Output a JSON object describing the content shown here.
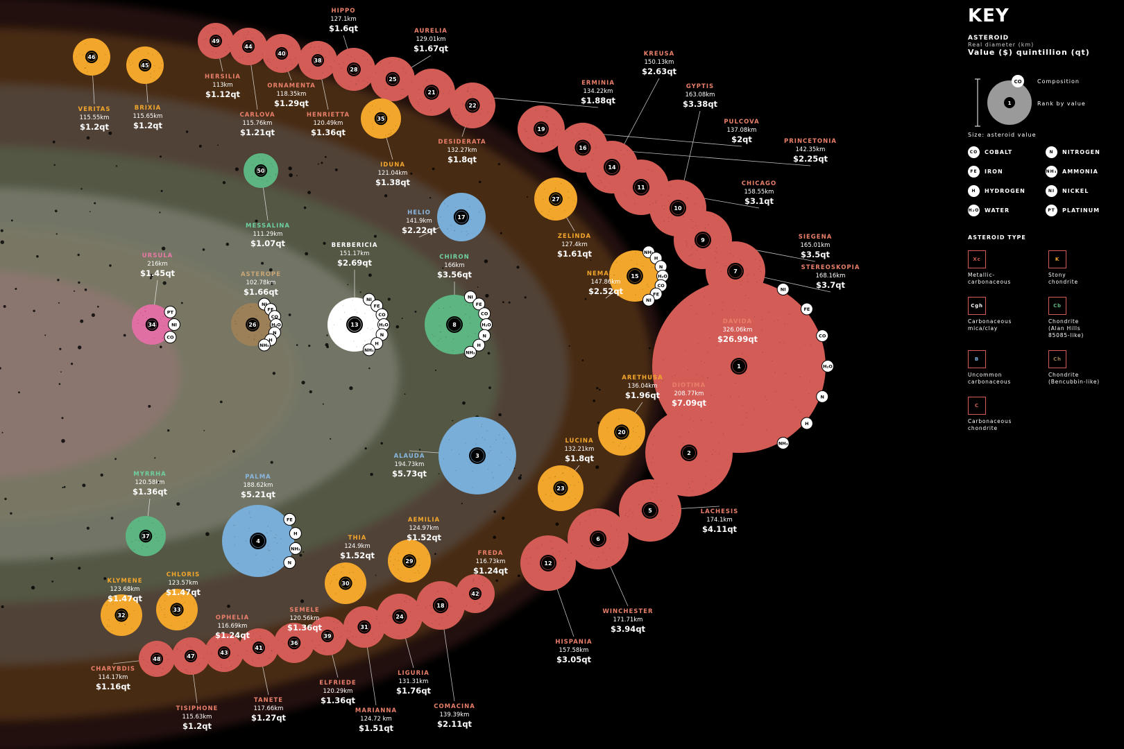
{
  "colors": {
    "background": "#000000",
    "Xc": "#d35d56",
    "K": "#f2a62b",
    "Cgh": "#ffffff",
    "Cb": "#5db581",
    "B": "#79aed9",
    "Ch": "#9b8058",
    "C": "#e06fa3",
    "name_red": "#e97f6a",
    "name_orange": "#f2a62b",
    "name_green": "#6fcfa0",
    "name_blue": "#8ab7e0",
    "name_pink": "#e67aa7",
    "name_tan": "#c9a677",
    "name_white": "#ffffff"
  },
  "key": {
    "title": "KEY",
    "asteroid_label": "ASTEROID",
    "diameter_label": "Real diameter (km)",
    "value_label": "Value ($) quintillion (qt)",
    "composition_label": "Composition",
    "rank_label": "Rank by value",
    "demo_rank": "1",
    "demo_comp": "CO",
    "size_label": "Size: asteroid  value",
    "compositions": [
      {
        "code": "CO",
        "name": "COBALT"
      },
      {
        "code": "N",
        "name": "NITROGEN"
      },
      {
        "code": "FE",
        "name": "IRON"
      },
      {
        "code": "NH₃",
        "name": "AMMONIA"
      },
      {
        "code": "H",
        "name": "HYDROGEN"
      },
      {
        "code": "NI",
        "name": "NICKEL"
      },
      {
        "code": "H₂O",
        "name": "WATER"
      },
      {
        "code": "PT",
        "name": "PLATINUM"
      }
    ],
    "type_title": "ASTEROID TYPE",
    "types": [
      {
        "code": "Xc",
        "line1": "Metallic-",
        "line2": "carbonaceous",
        "line3": "",
        "color": "#d35d56"
      },
      {
        "code": "K",
        "line1": "Stony",
        "line2": "chondrite",
        "line3": "",
        "color": "#f2a62b"
      },
      {
        "code": "Cgh",
        "line1": "Carbonaceous",
        "line2": "mica/clay",
        "line3": "",
        "color": "#ffffff"
      },
      {
        "code": "Cb",
        "line1": "Chondrite",
        "line2": "(Alan Hills",
        "line3": "85085-like)",
        "color": "#5db581"
      },
      {
        "code": "B",
        "line1": "Uncommon",
        "line2": "carbonaceous",
        "line3": "",
        "color": "#79aed9"
      },
      {
        "code": "Ch",
        "line1": "Chondrite",
        "line2": "(Bencubbin-like)",
        "line3": "",
        "color": "#9b8058"
      },
      {
        "code": "C",
        "line1": "Carbonaceous",
        "line2": "chondrite",
        "line3": "",
        "color": "#d35d56"
      }
    ]
  },
  "bands": [
    {
      "color": "#d35d56"
    },
    {
      "color": "#f2a62b"
    },
    {
      "color": "#79aed9"
    },
    {
      "color": "#5db581"
    },
    {
      "color": "#ffffff"
    },
    {
      "color": "#9b8058"
    },
    {
      "color": "#e06fa3"
    }
  ],
  "asteroids": [
    {
      "rank": "1",
      "name": "DAVIDA",
      "diameter": "326.06km",
      "value": "$26.99qt",
      "type": "Xc",
      "comps": [
        "NI",
        "FE",
        "CO",
        "H₂O",
        "N",
        "H",
        "NH₃"
      ]
    },
    {
      "rank": "2",
      "name": "DIOTIMA",
      "diameter": "208.77km",
      "value": "$7.09qt",
      "type": "Xc"
    },
    {
      "rank": "3",
      "name": "ALAUDA",
      "diameter": "194.73km",
      "value": "$5.73qt",
      "type": "B"
    },
    {
      "rank": "4",
      "name": "PALMA",
      "diameter": "188.62km",
      "value": "$5.21qt",
      "type": "B",
      "comps": [
        "FE",
        "H",
        "NH₃",
        "N"
      ]
    },
    {
      "rank": "5",
      "name": "LACHESIS",
      "diameter": "174.1km",
      "value": "$4.11qt",
      "type": "Xc"
    },
    {
      "rank": "6",
      "name": "WINCHESTER",
      "diameter": "171.71km",
      "value": "$3.94qt",
      "type": "Xc"
    },
    {
      "rank": "7",
      "name": "STEREOSKOPIA",
      "diameter": "168.16km",
      "value": "$3.7qt",
      "type": "Xc"
    },
    {
      "rank": "8",
      "name": "CHIRON",
      "diameter": "166km",
      "value": "$3.56qt",
      "type": "Cb",
      "comps": [
        "NI",
        "FE",
        "CO",
        "H₂O",
        "N",
        "H",
        "NH₃"
      ]
    },
    {
      "rank": "9",
      "name": "SIEGENA",
      "diameter": "165.01km",
      "value": "$3.5qt",
      "type": "Xc"
    },
    {
      "rank": "10",
      "name": "GYPTIS",
      "diameter": "163.08km",
      "value": "$3.38qt",
      "type": "Xc"
    },
    {
      "rank": "11",
      "name": "CHICAGO",
      "diameter": "158.55km",
      "value": "$3.1qt",
      "type": "Xc"
    },
    {
      "rank": "12",
      "name": "HISPANIA",
      "diameter": "157.58km",
      "value": "$3.05qt",
      "type": "Xc"
    },
    {
      "rank": "13",
      "name": "BERBERICIA",
      "diameter": "151.17km",
      "value": "$2.69qt",
      "type": "Cgh",
      "comps": [
        "NI",
        "FE",
        "CO",
        "H₂O",
        "N",
        "H",
        "NH₃"
      ]
    },
    {
      "rank": "14",
      "name": "KREUSA",
      "diameter": "150.13km",
      "value": "$2.63qt",
      "type": "Xc"
    },
    {
      "rank": "15",
      "name": "NEMAUSA",
      "diameter": "147.86km",
      "value": "$2.52qt",
      "type": "K",
      "comps": [
        "NH₃",
        "H",
        "N",
        "H₂O",
        "CO",
        "FE",
        "NI"
      ]
    },
    {
      "rank": "16",
      "name": "PRINCETONIA",
      "diameter": "142.35km",
      "value": "$2.25qt",
      "type": "Xc"
    },
    {
      "rank": "17",
      "name": "HELIO",
      "diameter": "141.9km",
      "value": "$2.22qt",
      "type": "B"
    },
    {
      "rank": "18",
      "name": "COMACINA",
      "diameter": "139.39km",
      "value": "$2.11qt",
      "type": "Xc"
    },
    {
      "rank": "19",
      "name": "PULCOVA",
      "diameter": "137.08km",
      "value": "$2qt",
      "type": "Xc"
    },
    {
      "rank": "20",
      "name": "ARETHUSA",
      "diameter": "136.04km",
      "value": "$1.96qt",
      "type": "K"
    },
    {
      "rank": "21",
      "name": "ERMINIA",
      "diameter": "134.22km",
      "value": "$1.88qt",
      "type": "Xc"
    },
    {
      "rank": "22",
      "name": "DESIDERATA",
      "diameter": "132.27km",
      "value": "$1.8qt",
      "type": "Xc"
    },
    {
      "rank": "23",
      "name": "LUCINA",
      "diameter": "132.21km",
      "value": "$1.8qt",
      "type": "K"
    },
    {
      "rank": "24",
      "name": "LIGURIA",
      "diameter": "131.31km",
      "value": "$1.76qt",
      "type": "Xc"
    },
    {
      "rank": "25",
      "name": "AURELIA",
      "diameter": "129.01km",
      "value": "$1.67qt",
      "type": "Xc"
    },
    {
      "rank": "26",
      "name": "ASTEROPE",
      "diameter": "102.78km",
      "value": "$1.66qt",
      "type": "Ch",
      "comps": [
        "NI",
        "FE",
        "CO",
        "H₂O",
        "N",
        "H",
        "NH₃"
      ]
    },
    {
      "rank": "27",
      "name": "ZELINDA",
      "diameter": "127.4km",
      "value": "$1.61qt",
      "type": "K"
    },
    {
      "rank": "28",
      "name": "HIPPO",
      "diameter": "127.1km",
      "value": "$1.6qt",
      "type": "Xc"
    },
    {
      "rank": "29",
      "name": "AEMILIA",
      "diameter": "124.97km",
      "value": "$1.52qt",
      "type": "K"
    },
    {
      "rank": "30",
      "name": "THIA",
      "diameter": "124.9km",
      "value": "$1.52qt",
      "type": "K"
    },
    {
      "rank": "31",
      "name": "MARIANNA",
      "diameter": "124.72 km",
      "value": "$1.51qt",
      "type": "Xc"
    },
    {
      "rank": "32",
      "name": "KLYMENE",
      "diameter": "123.68km",
      "value": "$1.47qt",
      "type": "K"
    },
    {
      "rank": "33",
      "name": "CHLORIS",
      "diameter": "123.57km",
      "value": "$1.47qt",
      "type": "K"
    },
    {
      "rank": "34",
      "name": "URSULA",
      "diameter": "216km",
      "value": "$1.45qt",
      "type": "C",
      "comps": [
        "PT",
        "NI",
        "CO"
      ]
    },
    {
      "rank": "35",
      "name": "IDUNA",
      "diameter": "121.04km",
      "value": "$1.38qt",
      "type": "K"
    },
    {
      "rank": "36",
      "name": "SEMELE",
      "diameter": "120.56km",
      "value": "$1.36qt",
      "type": "Xc"
    },
    {
      "rank": "37",
      "name": "MYRRHA",
      "diameter": "120.58km",
      "value": "$1.36qt",
      "type": "Cb"
    },
    {
      "rank": "38",
      "name": "HENRIETTA",
      "diameter": "120.49km",
      "value": "$1.36qt",
      "type": "Xc"
    },
    {
      "rank": "39",
      "name": "ELFRIEDE",
      "diameter": "120.29km",
      "value": "$1.36qt",
      "type": "Xc"
    },
    {
      "rank": "40",
      "name": "ORNAMENTA",
      "diameter": "118.35km",
      "value": "$1.29qt",
      "type": "Xc"
    },
    {
      "rank": "41",
      "name": "TANETE",
      "diameter": "117.66km",
      "value": "$1.27qt",
      "type": "Xc"
    },
    {
      "rank": "42",
      "name": "FREDA",
      "diameter": "116.73km",
      "value": "$1.24qt",
      "type": "Xc"
    },
    {
      "rank": "43",
      "name": "OPHELIA",
      "diameter": "116.69km",
      "value": "$1.24qt",
      "type": "Xc"
    },
    {
      "rank": "44",
      "name": "CARLOVA",
      "diameter": "115.76km",
      "value": "$1.21qt",
      "type": "Xc"
    },
    {
      "rank": "45",
      "name": "BRIXIA",
      "diameter": "115.65km",
      "value": "$1.2qt",
      "type": "K"
    },
    {
      "rank": "46",
      "name": "VERITAS",
      "diameter": "115.55km",
      "value": "$1.2qt",
      "type": "K"
    },
    {
      "rank": "47",
      "name": "TISIPHONE",
      "diameter": "115.63km",
      "value": "$1.2qt",
      "type": "Xc"
    },
    {
      "rank": "48",
      "name": "CHARYBDIS",
      "diameter": "114.17km",
      "value": "$1.16qt",
      "type": "Xc"
    },
    {
      "rank": "49",
      "name": "HERSILIA",
      "diameter": "113km",
      "value": "$1.12qt",
      "type": "Xc"
    },
    {
      "rank": "50",
      "name": "MESSALINA",
      "diameter": "111.29km",
      "value": "$1.07qt",
      "type": "Cb"
    }
  ]
}
